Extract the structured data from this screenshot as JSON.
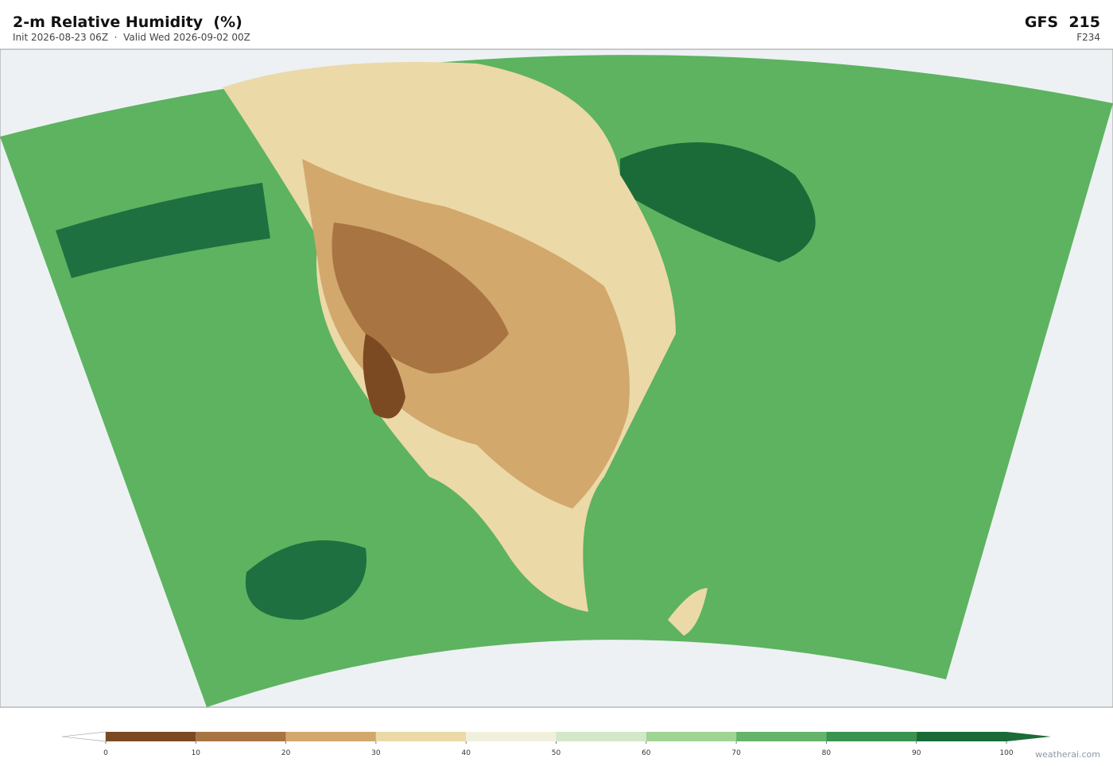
{
  "header": {
    "title": "2-m Relative Humidity  (%)",
    "subtitle": "Init 2026-08-23 06Z  ·  Valid Wed 2026-09-02 00Z",
    "model": "GFS  215",
    "forecast_hour": "F234"
  },
  "colorbar": {
    "ticks": [
      0,
      10,
      20,
      30,
      40,
      50,
      60,
      70,
      80,
      90,
      100
    ],
    "colors": [
      "#7b4a22",
      "#a87442",
      "#d2a86c",
      "#ecd9a8",
      "#f0f0dc",
      "#d2e8c8",
      "#a0d494",
      "#64b46a",
      "#38944e",
      "#1a6b38"
    ],
    "under_color": "#ffffff",
    "over_color": "#1a6b38"
  },
  "watermark": "weatherai.com"
}
